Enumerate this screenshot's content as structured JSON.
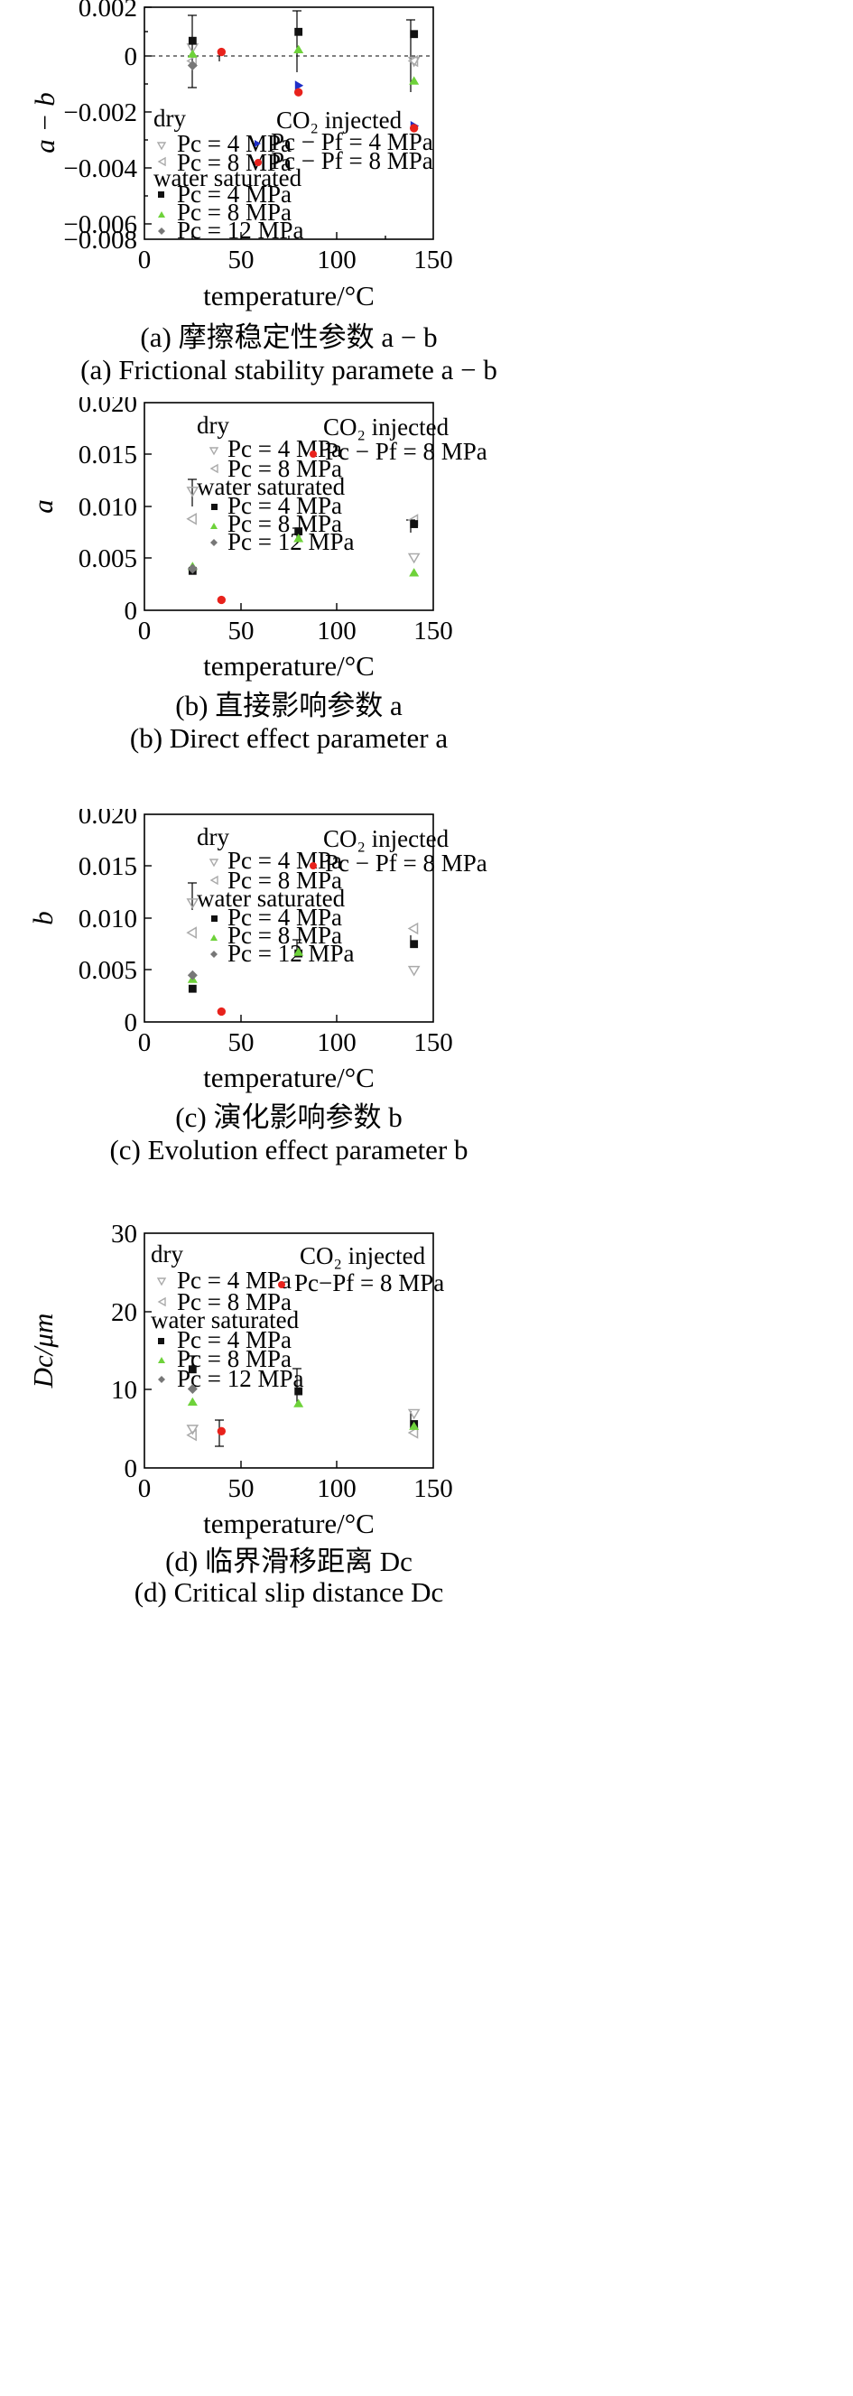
{
  "chart_data": [
    {
      "type": "scatter",
      "ylabel": "a − b",
      "xlabel": "temperature/°C",
      "xlim": [
        0,
        150
      ],
      "ylim": [
        -0.008,
        0.002
      ],
      "xticks": [
        "0",
        "50",
        "100",
        "150"
      ],
      "yticks": [
        "0.002",
        "0",
        "−0.002",
        "−0.004",
        "−0.006",
        "−0.008"
      ],
      "zero_line": true,
      "caption_cn": "(a) 摩擦稳定性参数 a − b",
      "caption_en": "(a) Frictional stability paramete a − b",
      "legend": {
        "dry": "dry",
        "water": "water saturated",
        "co2": "CO₂ injected",
        "items": {
          "dry_4": "Pc = 4 MPa",
          "dry_8": "Pc = 8 MPa",
          "w_4": "Pc = 4 MPa",
          "w_8": "Pc = 8 MPa",
          "w_12": "Pc = 12 MPa",
          "co2_4": "Pc − Pf = 4 MPa",
          "co2_8": "Pc − Pf = 8 MPa"
        }
      },
      "series": [
        {
          "name": "dry Pc = 4 MPa",
          "points": [
            [
              25,
              0.0002
            ],
            [
              140,
              -0.0004
            ]
          ]
        },
        {
          "name": "dry Pc = 8 MPa",
          "points": [
            [
              25,
              -0.0004
            ],
            [
              140,
              -0.0004
            ]
          ]
        },
        {
          "name": "water saturated Pc = 4 MPa",
          "points": [
            [
              25,
              0.0005
            ],
            [
              80,
              0.0009
            ],
            [
              140,
              0.0008
            ]
          ]
        },
        {
          "name": "water saturated Pc = 8 MPa",
          "points": [
            [
              25,
              -0.0001
            ],
            [
              80,
              0.0001
            ],
            [
              140,
              -0.0013
            ]
          ]
        },
        {
          "name": "water saturated Pc = 12 MPa",
          "points": [
            [
              25,
              -0.0006
            ]
          ]
        },
        {
          "name": "CO2 injected Pc − Pf = 4 MPa",
          "points": [
            [
              80,
              -0.0015
            ],
            [
              140,
              -0.0033
            ]
          ]
        },
        {
          "name": "CO2 injected Pc − Pf = 8 MPa",
          "points": [
            [
              40,
              0.0
            ],
            [
              80,
              -0.0018
            ],
            [
              140,
              -0.0034
            ]
          ]
        }
      ]
    },
    {
      "type": "scatter",
      "ylabel": "a",
      "xlabel": "temperature/°C",
      "xlim": [
        0,
        150
      ],
      "ylim": [
        0,
        0.02
      ],
      "xticks": [
        "0",
        "50",
        "100",
        "150"
      ],
      "yticks": [
        "0.020",
        "0.015",
        "0.010",
        "0.005",
        "0"
      ],
      "caption_cn": "(b) 直接影响参数 a",
      "caption_en": "(b) Direct effect parameter a",
      "legend": {
        "dry": "dry",
        "water": "water saturated",
        "co2": "CO₂ injected",
        "items": {
          "dry_4": "Pc = 4 MPa",
          "dry_8": "Pc = 8 MPa",
          "w_4": "Pc = 4 MPa",
          "w_8": "Pc = 8 MPa",
          "w_12": "Pc = 12 MPa",
          "co2_8": "Pc − Pf = 8 MPa"
        }
      },
      "series": [
        {
          "name": "dry Pc = 4 MPa",
          "points": [
            [
              25,
              0.0115
            ],
            [
              140,
              0.0051
            ]
          ]
        },
        {
          "name": "dry Pc = 8 MPa",
          "points": [
            [
              25,
              0.0088
            ],
            [
              140,
              0.0087
            ]
          ]
        },
        {
          "name": "water saturated Pc = 4 MPa",
          "points": [
            [
              25,
              0.0038
            ],
            [
              80,
              0.0076
            ],
            [
              140,
              0.0083
            ]
          ]
        },
        {
          "name": "water saturated Pc = 8 MPa",
          "points": [
            [
              25,
              0.0042
            ],
            [
              80,
              0.0069
            ],
            [
              140,
              0.0036
            ]
          ]
        },
        {
          "name": "water saturated Pc = 12 MPa",
          "points": [
            [
              25,
              0.004
            ]
          ]
        },
        {
          "name": "CO2 injected Pc − Pf = 8 MPa",
          "points": [
            [
              40,
              0.001
            ]
          ]
        }
      ]
    },
    {
      "type": "scatter",
      "ylabel": "b",
      "xlabel": "temperature/°C",
      "xlim": [
        0,
        150
      ],
      "ylim": [
        0,
        0.02
      ],
      "xticks": [
        "0",
        "50",
        "100",
        "150"
      ],
      "yticks": [
        "0.020",
        "0.015",
        "0.010",
        "0.005",
        "0"
      ],
      "caption_cn": "(c) 演化影响参数 b",
      "caption_en": "(c) Evolution effect parameter b",
      "legend": {
        "dry": "dry",
        "water": "water saturated",
        "co2": "CO₂ injected",
        "items": {
          "dry_4": "Pc = 4 MPa",
          "dry_8": "Pc = 8 MPa",
          "w_4": "Pc = 4 MPa",
          "w_8": "Pc = 8 MPa",
          "w_12": "Pc = 12 MPa",
          "co2_8": "Pc − Pf = 8 MPa"
        }
      },
      "series": [
        {
          "name": "dry Pc = 4 MPa",
          "points": [
            [
              25,
              0.0115
            ],
            [
              140,
              0.005
            ]
          ]
        },
        {
          "name": "dry Pc = 8 MPa",
          "points": [
            [
              25,
              0.0086
            ],
            [
              140,
              0.009
            ]
          ]
        },
        {
          "name": "water saturated Pc = 4 MPa",
          "points": [
            [
              25,
              0.0032
            ],
            [
              80,
              0.0066
            ],
            [
              140,
              0.0075
            ]
          ]
        },
        {
          "name": "water saturated Pc = 8 MPa",
          "points": [
            [
              25,
              0.0041
            ],
            [
              80,
              0.0067
            ]
          ]
        },
        {
          "name": "water saturated Pc = 12 MPa",
          "points": [
            [
              25,
              0.0045
            ]
          ]
        },
        {
          "name": "CO2 injected Pc − Pf = 8 MPa",
          "points": [
            [
              40,
              0.001
            ]
          ]
        }
      ]
    },
    {
      "type": "scatter",
      "ylabel": "Dc/μm",
      "xlabel": "temperature/°C",
      "xlim": [
        0,
        150
      ],
      "ylim": [
        0,
        30
      ],
      "xticks": [
        "0",
        "50",
        "100",
        "150"
      ],
      "yticks": [
        "30",
        "20",
        "10",
        "0"
      ],
      "caption_cn": "(d) 临界滑移距离 Dc",
      "caption_en": "(d) Critical slip distance Dc",
      "legend": {
        "dry": "dry",
        "water": "water saturated",
        "co2": "CO₂ injected",
        "items": {
          "dry_4": "Pc = 4 MPa",
          "dry_8": "Pc = 8 MPa",
          "w_4": "Pc = 4 MPa",
          "w_8": "Pc = 8 MPa",
          "w_12": "Pc = 12 MPa",
          "co2_8": "Pc−Pf = 8 MPa"
        }
      },
      "series": [
        {
          "name": "dry Pc = 4 MPa",
          "points": [
            [
              25,
              5.0
            ],
            [
              140,
              7.0
            ]
          ]
        },
        {
          "name": "dry Pc = 8 MPa",
          "points": [
            [
              25,
              4.2
            ],
            [
              140,
              4.5
            ]
          ]
        },
        {
          "name": "water saturated Pc = 4 MPa",
          "points": [
            [
              25,
              12.6
            ],
            [
              80,
              9.8
            ],
            [
              140,
              5.6
            ]
          ]
        },
        {
          "name": "water saturated Pc = 8 MPa",
          "points": [
            [
              25,
              8.4
            ],
            [
              80,
              8.2
            ],
            [
              140,
              5.3
            ]
          ]
        },
        {
          "name": "water saturated Pc = 12 MPa",
          "points": [
            [
              25,
              10.1
            ]
          ]
        },
        {
          "name": "CO2 injected Pc − Pf = 8 MPa",
          "points": [
            [
              40,
              4.7
            ]
          ]
        }
      ]
    }
  ],
  "colors": {
    "black_square": "#111111",
    "green_triangle": "#6ed23a",
    "gray_diamond": "#777777",
    "blue_triangle": "#1f2fc8",
    "red_circle": "#e8221c",
    "dry_marker": "#aaaaaa"
  }
}
